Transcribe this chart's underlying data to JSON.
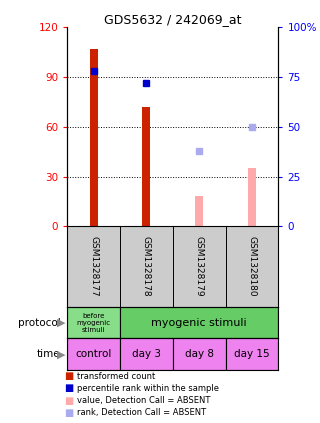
{
  "title": "GDS5632 / 242069_at",
  "samples": [
    "GSM1328177",
    "GSM1328178",
    "GSM1328179",
    "GSM1328180"
  ],
  "bar_values_present": [
    107,
    72,
    null,
    null
  ],
  "bar_values_absent": [
    null,
    null,
    18,
    35
  ],
  "rank_values_present": [
    78,
    72,
    null,
    null
  ],
  "rank_values_absent": [
    null,
    null,
    38,
    50
  ],
  "ylim_left": [
    0,
    120
  ],
  "ylim_right": [
    0,
    100
  ],
  "yticks_left": [
    0,
    30,
    60,
    90,
    120
  ],
  "ytick_labels_left": [
    "0",
    "30",
    "60",
    "90",
    "120"
  ],
  "yticks_right": [
    0,
    25,
    50,
    75,
    100
  ],
  "ytick_labels_right": [
    "0",
    "25",
    "50",
    "75",
    "100%"
  ],
  "time_labels": [
    "control",
    "day 3",
    "day 8",
    "day 15"
  ],
  "time_color": "#ee82ee",
  "protocol_color_1": "#88dd88",
  "protocol_color_2": "#66cc66",
  "protocol_label_1": "before\nmyogenic\nstimuli",
  "protocol_label_2": "myogenic stimuli",
  "bar_color_present": "#cc2200",
  "bar_color_absent": "#ffaaaa",
  "rank_color_present": "#0000cc",
  "rank_color_absent": "#aaaaee",
  "sample_bg_color": "#cccccc",
  "bar_width": 0.15,
  "legend_items": [
    {
      "color": "#cc2200",
      "label": "transformed count"
    },
    {
      "color": "#0000cc",
      "label": "percentile rank within the sample"
    },
    {
      "color": "#ffaaaa",
      "label": "value, Detection Call = ABSENT"
    },
    {
      "color": "#aaaaee",
      "label": "rank, Detection Call = ABSENT"
    }
  ]
}
